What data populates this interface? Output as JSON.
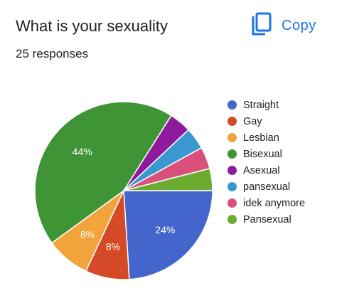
{
  "header": {
    "title": "What is your sexuality",
    "responses": "25 responses",
    "copy_label": "Copy",
    "copy_icon": "copy-icon"
  },
  "colors": {
    "accent": "#1a73e8"
  },
  "chart_data": {
    "type": "pie",
    "title": "What is your sexuality",
    "subtitle": "25 responses",
    "legend_position": "right",
    "slices": [
      {
        "label": "Straight",
        "value": 24,
        "display": "24%",
        "color": "#4466cc"
      },
      {
        "label": "Gay",
        "value": 8,
        "display": "8%",
        "color": "#d44a26"
      },
      {
        "label": "Lesbian",
        "value": 8,
        "display": "8%",
        "color": "#f3a33b"
      },
      {
        "label": "Bisexual",
        "value": 44,
        "display": "44%",
        "color": "#3f9436"
      },
      {
        "label": "Asexual",
        "value": 4,
        "display": "",
        "color": "#8e1a9c"
      },
      {
        "label": "pansexual",
        "value": 4,
        "display": "",
        "color": "#3b97cf"
      },
      {
        "label": "idek anymore",
        "value": 4,
        "display": "",
        "color": "#d9507a"
      },
      {
        "label": "Pansexual",
        "value": 4,
        "display": "",
        "color": "#6aab30"
      }
    ]
  }
}
